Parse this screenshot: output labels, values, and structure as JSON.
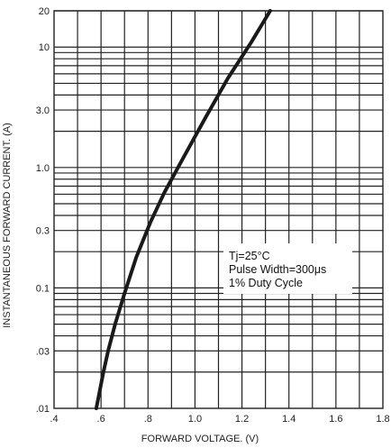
{
  "chart_data": {
    "type": "line",
    "xlabel": "FORWARD VOLTAGE. (V)",
    "ylabel": "INSTANTANEOUS FORWARD CURRENT. (A)",
    "x_scale": "linear",
    "y_scale": "log",
    "xlim": [
      0.4,
      1.8
    ],
    "ylim": [
      0.01,
      20
    ],
    "x_ticks": [
      {
        "value": 0.4,
        "label": ".4"
      },
      {
        "value": 0.6,
        "label": ".6"
      },
      {
        "value": 0.8,
        "label": ".8"
      },
      {
        "value": 1.0,
        "label": "1.0"
      },
      {
        "value": 1.2,
        "label": "1.2"
      },
      {
        "value": 1.4,
        "label": "1.4"
      },
      {
        "value": 1.6,
        "label": "1.6"
      },
      {
        "value": 1.8,
        "label": "1.8"
      }
    ],
    "y_ticks": [
      {
        "value": 20,
        "label": "20"
      },
      {
        "value": 10,
        "label": "10"
      },
      {
        "value": 3,
        "label": "3.0"
      },
      {
        "value": 1,
        "label": "1.0"
      },
      {
        "value": 0.3,
        "label": "0.3"
      },
      {
        "value": 0.1,
        "label": "0.1"
      },
      {
        "value": 0.03,
        "label": ".03"
      },
      {
        "value": 0.01,
        "label": ".01"
      }
    ],
    "grid": true,
    "series": [
      {
        "x": [
          0.58,
          0.61,
          0.63,
          0.66,
          0.7,
          0.75,
          0.81,
          0.87,
          0.95,
          1.04,
          1.14,
          1.24,
          1.32
        ],
        "y": [
          0.01,
          0.02,
          0.03,
          0.05,
          0.09,
          0.18,
          0.35,
          0.62,
          1.2,
          2.5,
          5.5,
          11,
          20
        ]
      }
    ],
    "annotations": [
      "Tj=25°C",
      "Pulse Width=300μs",
      "1% Duty Cycle"
    ],
    "line_color": "#1a1a1a",
    "grid_color": "#222222"
  }
}
